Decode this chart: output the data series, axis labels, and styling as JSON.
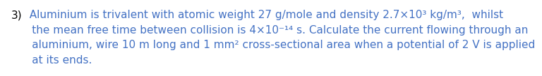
{
  "background_color": "#ffffff",
  "text_color": "#4472c4",
  "black_color": "#000000",
  "fontsize": 11.0,
  "line1": "3)  Aluminium is trivalent with atomic weight 27 g/mole and density 2.7×10³ kg/m³,  whilst",
  "line2": "      the mean free time between collision is 4×10⁻¹⁴ s. Calculate the current flowing through an",
  "line3": "      aluminium, wire 10 m long and 1 mm² cross-sectional area when a potential of 2 V is applied",
  "line4": "      at its ends."
}
